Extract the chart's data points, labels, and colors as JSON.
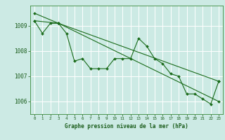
{
  "title": "Graphe pression niveau de la mer (hPa)",
  "bg_color": "#cceae4",
  "grid_color": "#ffffff",
  "line_color": "#1a6b1a",
  "x_ticks": [
    0,
    1,
    2,
    3,
    4,
    5,
    6,
    7,
    8,
    9,
    10,
    11,
    12,
    13,
    14,
    15,
    16,
    17,
    18,
    19,
    20,
    21,
    22,
    23
  ],
  "ylim": [
    1005.5,
    1009.8
  ],
  "yticks": [
    1006,
    1007,
    1008,
    1009
  ],
  "series1": [
    1009.2,
    1008.7,
    1009.1,
    1009.1,
    1008.7,
    1007.6,
    1007.7,
    1007.3,
    1007.3,
    1007.3,
    1007.7,
    1007.7,
    1007.7,
    1008.5,
    1008.2,
    1007.7,
    1007.5,
    1007.1,
    1007.0,
    1006.3,
    1006.3,
    1006.1,
    1005.9,
    1006.8
  ],
  "series2_x": [
    0,
    3,
    23
  ],
  "series2_y": [
    1009.5,
    1009.1,
    1006.8
  ],
  "series3_x": [
    0,
    3,
    23
  ],
  "series3_y": [
    1009.2,
    1009.1,
    1006.0
  ]
}
